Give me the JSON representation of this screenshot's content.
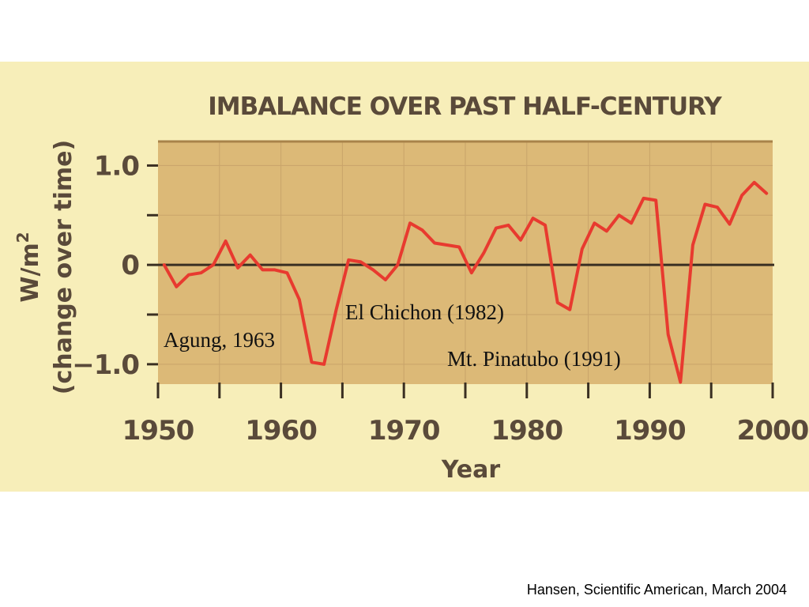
{
  "colors": {
    "background": "#f7eeb9",
    "plot_area": "#dcb977",
    "grid": "#c9a46a",
    "series_line": "#e83a2f",
    "zero_line": "#3a2f22",
    "axis_text": "#5a4a3a"
  },
  "chart_data": {
    "type": "line",
    "title": "IMBALANCE OVER PAST HALF-CENTURY",
    "xlabel": "Year",
    "ylabel_line1": "W/m",
    "ylabel_superscript": "2",
    "ylabel_line2": "(change over time)",
    "xlim": [
      1950,
      2000
    ],
    "ylim": [
      -1.2,
      1.25
    ],
    "x_ticks": [
      1950,
      1960,
      1970,
      1980,
      1990,
      2000
    ],
    "x_tick_labels": [
      "1950",
      "1960",
      "1970",
      "1980",
      "1990",
      "2000"
    ],
    "y_ticks": [
      1.0,
      0,
      -1.0
    ],
    "y_tick_labels": [
      "1.0",
      "0",
      "−1.0"
    ],
    "grid": true,
    "zero_line": true,
    "series": [
      {
        "x": [
          1950.5,
          1951.5,
          1952.5,
          1953.5,
          1954.5,
          1955.5,
          1956.5,
          1957.5,
          1958.5,
          1959.5,
          1960.5,
          1961.5,
          1962.5,
          1963.5,
          1964.5,
          1965.5,
          1966.5,
          1967.5,
          1968.5,
          1969.5,
          1970.5,
          1971.5,
          1972.5,
          1973.5,
          1974.5,
          1975.5,
          1976.5,
          1977.5,
          1978.5,
          1979.5,
          1980.5,
          1981.5,
          1982.5,
          1983.5,
          1984.5,
          1985.5,
          1986.5,
          1987.5,
          1988.5,
          1989.5,
          1990.5,
          1991.5,
          1992.5,
          1993.5,
          1994.5,
          1995.5,
          1996.5,
          1997.5,
          1998.5,
          1999.5
        ],
        "values": [
          0.0,
          -0.22,
          -0.1,
          -0.08,
          0.0,
          0.24,
          -0.03,
          0.1,
          -0.05,
          -0.05,
          -0.08,
          -0.35,
          -0.98,
          -1.0,
          -0.45,
          0.05,
          0.03,
          -0.05,
          -0.15,
          0.0,
          0.42,
          0.35,
          0.22,
          0.2,
          0.18,
          -0.08,
          0.12,
          0.37,
          0.4,
          0.25,
          0.47,
          0.4,
          -0.38,
          -0.45,
          0.16,
          0.42,
          0.34,
          0.5,
          0.42,
          0.67,
          0.65,
          -0.7,
          -1.18,
          0.2,
          0.61,
          0.58,
          0.41,
          0.7,
          0.83,
          0.72
        ]
      }
    ],
    "annotations": [
      {
        "text": "Agung, 1963"
      },
      {
        "text": "El Chichon (1982)"
      },
      {
        "text": "Mt. Pinatubo (1991)"
      }
    ]
  },
  "footer": {
    "credit": "Hansen, Scientific American, March 2004"
  }
}
